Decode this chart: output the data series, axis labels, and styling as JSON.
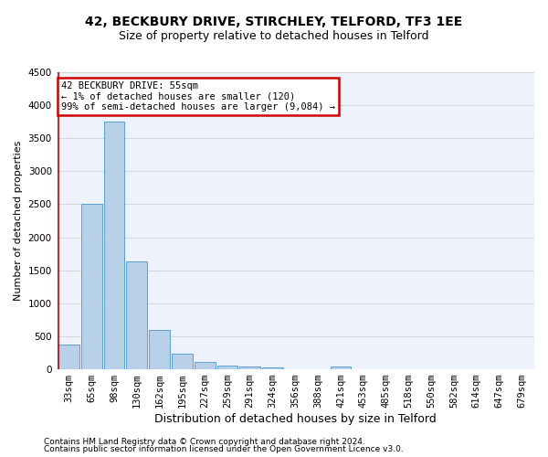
{
  "title1": "42, BECKBURY DRIVE, STIRCHLEY, TELFORD, TF3 1EE",
  "title2": "Size of property relative to detached houses in Telford",
  "xlabel": "Distribution of detached houses by size in Telford",
  "ylabel": "Number of detached properties",
  "categories": [
    "33sqm",
    "65sqm",
    "98sqm",
    "130sqm",
    "162sqm",
    "195sqm",
    "227sqm",
    "259sqm",
    "291sqm",
    "324sqm",
    "356sqm",
    "388sqm",
    "421sqm",
    "453sqm",
    "485sqm",
    "518sqm",
    "550sqm",
    "582sqm",
    "614sqm",
    "647sqm",
    "679sqm"
  ],
  "values": [
    370,
    2500,
    3750,
    1640,
    590,
    235,
    110,
    60,
    45,
    30,
    0,
    0,
    45,
    0,
    0,
    0,
    0,
    0,
    0,
    0,
    0
  ],
  "bar_color": "#b8d0e8",
  "bar_edge_color": "#5a9fd4",
  "annotation_line1": "42 BECKBURY DRIVE: 55sqm",
  "annotation_line2": "← 1% of detached houses are smaller (120)",
  "annotation_line3": "99% of semi-detached houses are larger (9,084) →",
  "annotation_box_color": "#ffffff",
  "annotation_box_edge_color": "#cc0000",
  "ylim": [
    0,
    4500
  ],
  "yticks": [
    0,
    500,
    1000,
    1500,
    2000,
    2500,
    3000,
    3500,
    4000,
    4500
  ],
  "footer1": "Contains HM Land Registry data © Crown copyright and database right 2024.",
  "footer2": "Contains public sector information licensed under the Open Government Licence v3.0.",
  "bg_color": "#eef2fc",
  "grid_color": "#d0d0d0",
  "title1_fontsize": 10,
  "title2_fontsize": 9,
  "xlabel_fontsize": 9,
  "ylabel_fontsize": 8,
  "tick_fontsize": 7.5,
  "annotation_fontsize": 7.5,
  "footer_fontsize": 6.5,
  "red_line_color": "#cc0000"
}
